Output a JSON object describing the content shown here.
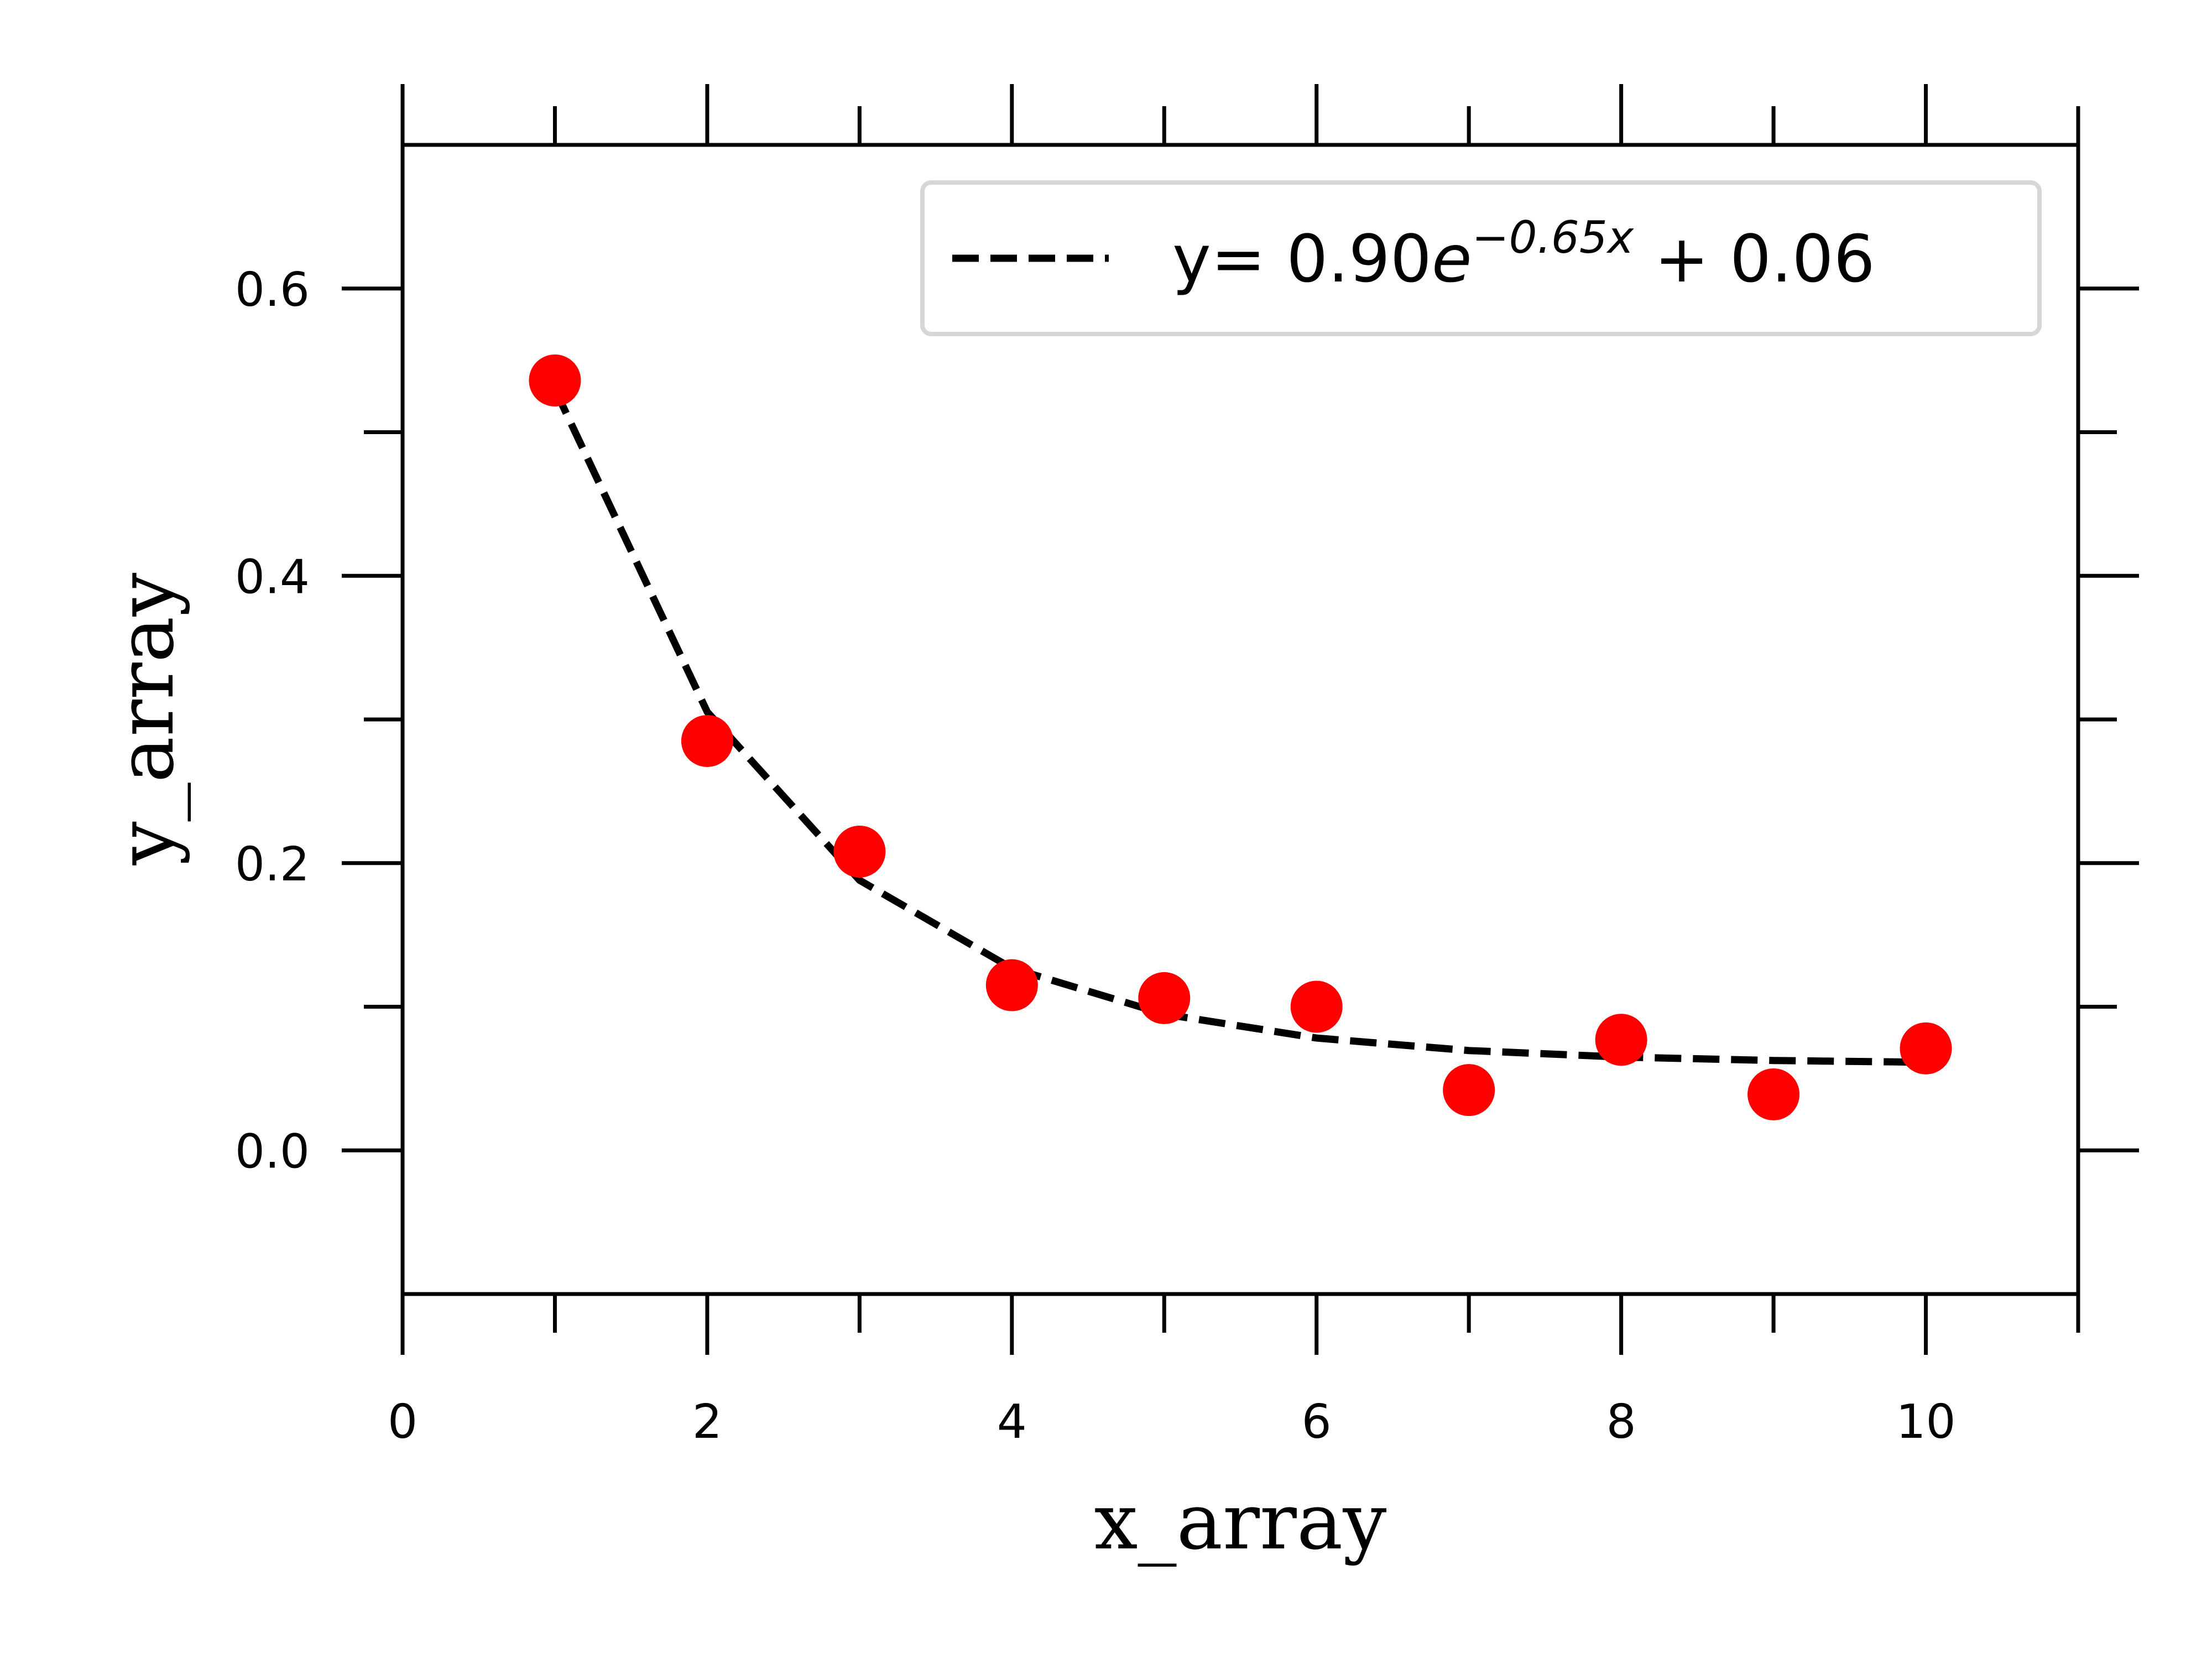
{
  "chart_data": {
    "type": "scatter",
    "xlabel": "x_array",
    "ylabel": "y_array",
    "xlim": [
      0,
      11
    ],
    "ylim": [
      -0.1,
      0.7
    ],
    "x_ticks_major": [
      0,
      2,
      4,
      6,
      8,
      10
    ],
    "x_tick_labels": [
      "0",
      "2",
      "4",
      "6",
      "8",
      "10"
    ],
    "x_ticks_minor": [
      1,
      3,
      5,
      7,
      9,
      11
    ],
    "y_ticks_major": [
      0.0,
      0.2,
      0.4,
      0.6
    ],
    "y_tick_labels": [
      "0.0",
      "0.2",
      "0.4",
      "0.6"
    ],
    "y_ticks_minor": [
      0.1,
      0.3,
      0.5
    ],
    "grid": false,
    "legend_position": "top-right",
    "points": {
      "color": "#ff0000",
      "x": [
        1,
        2,
        3,
        4,
        5,
        6,
        7,
        8,
        9,
        10
      ],
      "y": [
        0.536,
        0.285,
        0.208,
        0.115,
        0.106,
        0.1,
        0.042,
        0.077,
        0.039,
        0.071
      ]
    },
    "fit": {
      "style": "dashed",
      "color": "#000000",
      "a": 0.9,
      "b": 0.65,
      "c": 0.06,
      "x_start": 1,
      "x_end": 10,
      "legend": {
        "prefix": "y= 0.90",
        "base": "e",
        "exponent": "−0.65x",
        "suffix": " + 0.06"
      }
    }
  }
}
